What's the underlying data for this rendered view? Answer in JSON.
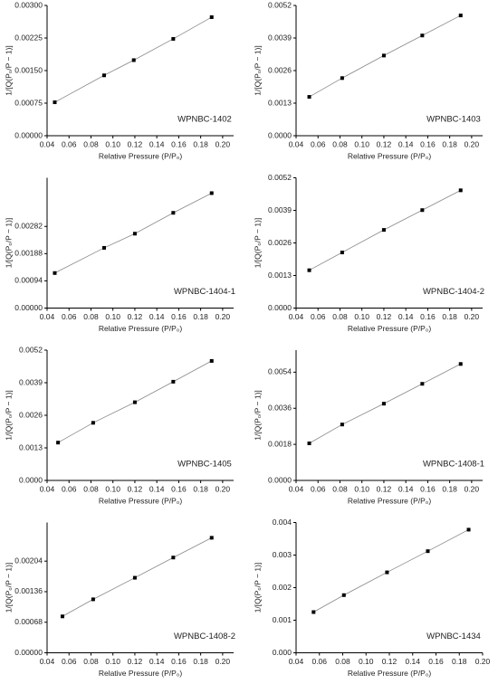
{
  "chart_data": [
    {
      "type": "scatter",
      "annotation": "WPNBC-1402",
      "x_label": "Relative Pressure (P/P₀)",
      "y_label": "1/[Q(P₀/P − 1)]",
      "x": [
        0.047,
        0.092,
        0.119,
        0.155,
        0.19
      ],
      "values": [
        0.00077,
        0.00139,
        0.00174,
        0.00223,
        0.00273
      ],
      "xlim": [
        0.04,
        0.21
      ],
      "xticks": [
        0.04,
        0.06,
        0.08,
        {
          "value": 0.1,
          "label": "0.10"
        },
        0.12,
        0.14,
        0.16,
        0.18,
        {
          "value": 0.2,
          "label": "0.20"
        }
      ],
      "ylim": [
        0,
        0.003
      ],
      "yticks": [
        {
          "value": 0,
          "label": "0.00000"
        },
        {
          "value": 0.00075,
          "label": "0.00075"
        },
        {
          "value": 0.0015,
          "label": "0.00150"
        },
        {
          "value": 0.00225,
          "label": "0.00225"
        },
        {
          "value": 0.003,
          "label": "0.00300"
        }
      ],
      "color": "#000000",
      "line_color": "#888888"
    },
    {
      "type": "scatter",
      "annotation": "WPNBC-1403",
      "x_label": "Relative Pressure (P/P₀)",
      "y_label": "1/[Q(P₀/P − 1)]",
      "x": [
        0.052,
        0.082,
        0.12,
        0.155,
        0.19
      ],
      "values": [
        0.00155,
        0.0023,
        0.0032,
        0.004,
        0.0048
      ],
      "xlim": [
        0.04,
        0.21
      ],
      "xticks": [
        0.04,
        0.06,
        0.08,
        {
          "value": 0.1,
          "label": "0.10"
        },
        0.12,
        0.14,
        0.16,
        0.18,
        {
          "value": 0.2,
          "label": "0.20"
        }
      ],
      "ylim": [
        0,
        0.0052
      ],
      "yticks": [
        {
          "value": 0,
          "label": "0.0000"
        },
        0.0013,
        0.0026,
        0.0039,
        0.0052
      ],
      "color": "#000000",
      "line_color": "#888888"
    },
    {
      "type": "scatter",
      "annotation": "WPNBC-1404-1",
      "x_label": "Relative Pressure (P/P₀)",
      "y_label": "1/[Q(P₀/P − 1)]",
      "x": [
        0.047,
        0.092,
        0.12,
        0.155,
        0.19
      ],
      "values": [
        0.00121,
        0.00208,
        0.00257,
        0.00329,
        0.00397
      ],
      "xlim": [
        0.04,
        0.21
      ],
      "xticks": [
        0.04,
        0.06,
        0.08,
        {
          "value": 0.1,
          "label": "0.10"
        },
        0.12,
        0.14,
        0.16,
        0.18,
        {
          "value": 0.2,
          "label": "0.20"
        }
      ],
      "ylim": [
        0,
        0.0045
      ],
      "yticks": [
        {
          "value": 0,
          "label": "0.00000"
        },
        0.00094,
        0.00188,
        0.00282
      ],
      "color": "#000000",
      "line_color": "#888888"
    },
    {
      "type": "scatter",
      "annotation": "WPNBC-1404-2",
      "x_label": "Relative Pressure (P/P₀)",
      "y_label": "1/[Q(P₀/P − 1)]",
      "x": [
        0.052,
        0.082,
        0.12,
        0.155,
        0.19
      ],
      "values": [
        0.00151,
        0.00222,
        0.00312,
        0.00391,
        0.0047
      ],
      "xlim": [
        0.04,
        0.21
      ],
      "xticks": [
        0.04,
        0.06,
        0.08,
        {
          "value": 0.1,
          "label": "0.10"
        },
        0.12,
        0.14,
        0.16,
        0.18,
        {
          "value": 0.2,
          "label": "0.20"
        }
      ],
      "ylim": [
        0,
        0.0052
      ],
      "yticks": [
        {
          "value": 0,
          "label": "0.0000"
        },
        0.0013,
        0.0026,
        0.0039,
        0.0052
      ],
      "color": "#000000",
      "line_color": "#888888"
    },
    {
      "type": "scatter",
      "annotation": "WPNBC-1405",
      "x_label": "Relative Pressure (P/P₀)",
      "y_label": "1/[Q(P₀/P − 1)]",
      "x": [
        0.05,
        0.082,
        0.12,
        0.155,
        0.19
      ],
      "values": [
        0.00151,
        0.0023,
        0.00312,
        0.00394,
        0.00477
      ],
      "xlim": [
        0.04,
        0.21
      ],
      "xticks": [
        0.04,
        0.06,
        0.08,
        {
          "value": 0.1,
          "label": "0.10"
        },
        0.12,
        0.14,
        0.16,
        0.18,
        {
          "value": 0.2,
          "label": "0.20"
        }
      ],
      "ylim": [
        0,
        0.0052
      ],
      "yticks": [
        {
          "value": 0,
          "label": "0.0000"
        },
        0.0013,
        0.0026,
        0.0039,
        0.0052
      ],
      "color": "#000000",
      "line_color": "#888888"
    },
    {
      "type": "scatter",
      "annotation": "WPNBC-1408-1",
      "x_label": "Relative Pressure (P/P₀)",
      "y_label": "1/[Q(P₀/P − 1)]",
      "x": [
        0.052,
        0.082,
        0.12,
        0.155,
        0.19
      ],
      "values": [
        0.00185,
        0.00279,
        0.00383,
        0.00482,
        0.00581
      ],
      "xlim": [
        0.04,
        0.21
      ],
      "xticks": [
        0.04,
        0.06,
        0.08,
        {
          "value": 0.1,
          "label": "0.10"
        },
        0.12,
        0.14,
        0.16,
        0.18,
        {
          "value": 0.2,
          "label": "0.20"
        }
      ],
      "ylim": [
        0,
        0.0065
      ],
      "yticks": [
        {
          "value": 0,
          "label": "0.0000"
        },
        0.0018,
        0.0036,
        0.0054
      ],
      "color": "#000000",
      "line_color": "#888888"
    },
    {
      "type": "scatter",
      "annotation": "WPNBC-1408-2",
      "x_label": "Relative Pressure (P/P₀)",
      "y_label": "1/[Q(P₀/P − 1)]",
      "x": [
        0.054,
        0.082,
        0.12,
        0.155,
        0.19
      ],
      "values": [
        0.00081,
        0.00119,
        0.00167,
        0.00212,
        0.00256
      ],
      "xlim": [
        0.04,
        0.21
      ],
      "xticks": [
        0.04,
        0.06,
        0.08,
        {
          "value": 0.1,
          "label": "0.10"
        },
        0.12,
        0.14,
        0.16,
        0.18,
        {
          "value": 0.2,
          "label": "0.20"
        }
      ],
      "ylim": [
        0,
        0.0029
      ],
      "yticks": [
        {
          "value": 0,
          "label": "0.00000"
        },
        0.00068,
        0.00136,
        0.00204
      ],
      "color": "#000000",
      "line_color": "#888888"
    },
    {
      "type": "scatter",
      "annotation": "WPNBC-1434",
      "x_label": "Relative Pressure (P/P₀)",
      "y_label": "1/[Q(P₀/P − 1)]",
      "x": [
        0.055,
        0.081,
        0.118,
        0.153,
        0.188
      ],
      "values": [
        0.00125,
        0.00177,
        0.00247,
        0.00312,
        0.00378
      ],
      "xlim": [
        0.04,
        0.2
      ],
      "xticks": [
        0.04,
        0.06,
        0.08,
        {
          "value": 0.1,
          "label": "0.10"
        },
        0.12,
        0.14,
        0.16,
        0.18,
        {
          "value": 0.2,
          "label": "0.20"
        }
      ],
      "ylim": [
        0,
        0.004
      ],
      "yticks": [
        {
          "value": 0,
          "label": "0.000"
        },
        0.001,
        0.002,
        0.003,
        0.004
      ],
      "color": "#000000",
      "line_color": "#888888"
    }
  ]
}
